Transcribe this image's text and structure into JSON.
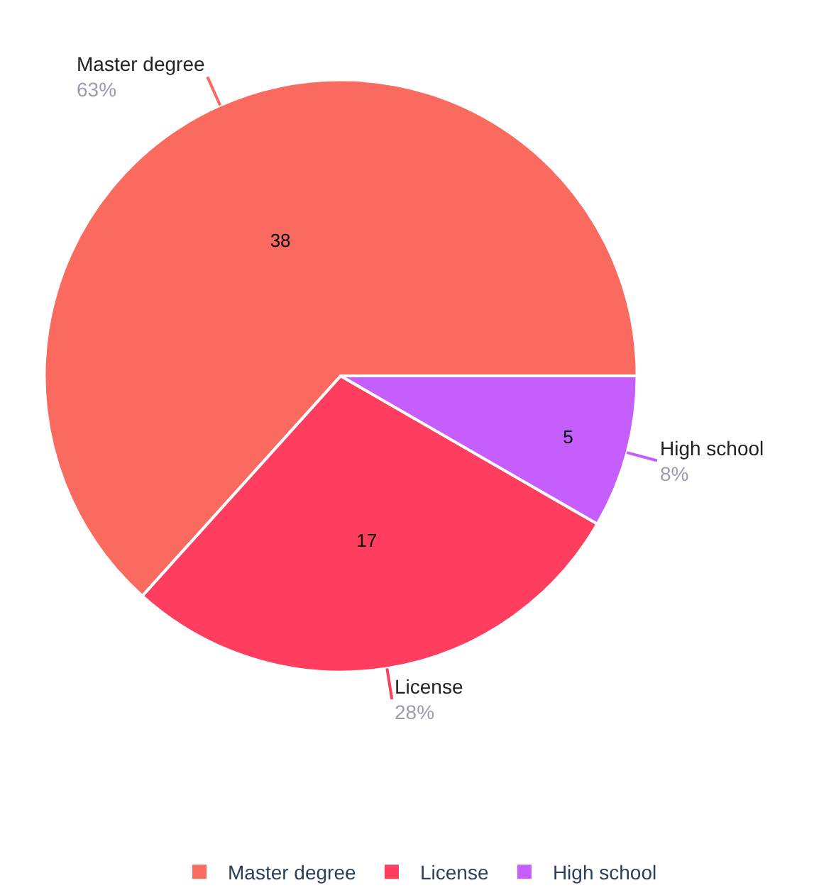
{
  "chart_data": {
    "type": "pie",
    "categories": [
      "Master degree",
      "License",
      "High school"
    ],
    "values": [
      38,
      17,
      5
    ],
    "colors": [
      "#fa6a5f",
      "#ff3d5e",
      "#c65dfd"
    ],
    "data_labels": true,
    "legend": "bottom",
    "annotations": [
      "63%",
      "28%",
      "8%"
    ]
  }
}
